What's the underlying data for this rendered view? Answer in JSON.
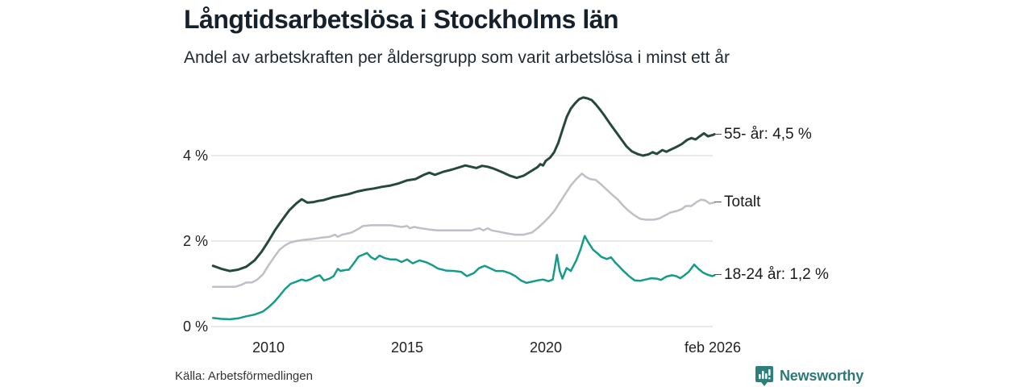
{
  "chart_data": {
    "type": "line",
    "title": "Långtidsarbetslösa i Stockholms län",
    "subtitle": "Andel av arbetskraften per åldersgrupp som varit arbetslösa i minst ett år",
    "xlabel": "",
    "ylabel": "",
    "xlim": [
      2008.0,
      2026.08
    ],
    "ylim": [
      0,
      5.6
    ],
    "grid": "horizontal",
    "legend_position": "right-end-labels",
    "y_ticks": [
      {
        "label": "0 %",
        "value": 0
      },
      {
        "label": "2 %",
        "value": 2
      },
      {
        "label": "4 %",
        "value": 4
      }
    ],
    "x_ticks": [
      {
        "label": "2010",
        "year": 2010
      },
      {
        "label": "2015",
        "year": 2015
      },
      {
        "label": "2020",
        "year": 2020
      },
      {
        "label": "feb 2026",
        "year": 2026.08
      }
    ],
    "series": [
      {
        "name": "55- år",
        "end_label": "55- år: 4,5 %",
        "end_value_text": "4,5 %",
        "color": "#26493f",
        "stroke_width": 3,
        "points": [
          [
            2008.0,
            1.42
          ],
          [
            2008.3,
            1.35
          ],
          [
            2008.6,
            1.3
          ],
          [
            2008.9,
            1.33
          ],
          [
            2009.2,
            1.4
          ],
          [
            2009.5,
            1.55
          ],
          [
            2009.75,
            1.75
          ],
          [
            2010.0,
            2.0
          ],
          [
            2010.25,
            2.27
          ],
          [
            2010.5,
            2.5
          ],
          [
            2010.75,
            2.72
          ],
          [
            2011.0,
            2.88
          ],
          [
            2011.2,
            2.98
          ],
          [
            2011.4,
            2.9
          ],
          [
            2011.6,
            2.91
          ],
          [
            2011.8,
            2.94
          ],
          [
            2012.0,
            2.96
          ],
          [
            2012.3,
            3.02
          ],
          [
            2012.6,
            3.06
          ],
          [
            2012.9,
            3.1
          ],
          [
            2013.2,
            3.16
          ],
          [
            2013.5,
            3.2
          ],
          [
            2013.8,
            3.23
          ],
          [
            2014.1,
            3.27
          ],
          [
            2014.4,
            3.3
          ],
          [
            2014.7,
            3.35
          ],
          [
            2015.0,
            3.42
          ],
          [
            2015.3,
            3.45
          ],
          [
            2015.6,
            3.55
          ],
          [
            2015.8,
            3.6
          ],
          [
            2016.0,
            3.55
          ],
          [
            2016.3,
            3.62
          ],
          [
            2016.6,
            3.67
          ],
          [
            2016.9,
            3.73
          ],
          [
            2017.1,
            3.77
          ],
          [
            2017.3,
            3.74
          ],
          [
            2017.5,
            3.71
          ],
          [
            2017.7,
            3.76
          ],
          [
            2017.9,
            3.74
          ],
          [
            2018.1,
            3.7
          ],
          [
            2018.4,
            3.62
          ],
          [
            2018.7,
            3.53
          ],
          [
            2018.95,
            3.48
          ],
          [
            2019.2,
            3.53
          ],
          [
            2019.45,
            3.63
          ],
          [
            2019.7,
            3.73
          ],
          [
            2019.8,
            3.8
          ],
          [
            2019.9,
            3.77
          ],
          [
            2020.0,
            3.88
          ],
          [
            2020.15,
            3.95
          ],
          [
            2020.3,
            4.08
          ],
          [
            2020.45,
            4.3
          ],
          [
            2020.6,
            4.6
          ],
          [
            2020.75,
            4.9
          ],
          [
            2020.9,
            5.1
          ],
          [
            2021.05,
            5.22
          ],
          [
            2021.2,
            5.32
          ],
          [
            2021.35,
            5.36
          ],
          [
            2021.5,
            5.34
          ],
          [
            2021.65,
            5.3
          ],
          [
            2021.8,
            5.2
          ],
          [
            2021.95,
            5.08
          ],
          [
            2022.1,
            4.95
          ],
          [
            2022.3,
            4.76
          ],
          [
            2022.5,
            4.58
          ],
          [
            2022.7,
            4.4
          ],
          [
            2022.9,
            4.22
          ],
          [
            2023.1,
            4.1
          ],
          [
            2023.3,
            4.04
          ],
          [
            2023.5,
            4.0
          ],
          [
            2023.7,
            4.03
          ],
          [
            2023.85,
            4.08
          ],
          [
            2024.0,
            4.04
          ],
          [
            2024.2,
            4.13
          ],
          [
            2024.35,
            4.09
          ],
          [
            2024.5,
            4.14
          ],
          [
            2024.7,
            4.2
          ],
          [
            2024.9,
            4.27
          ],
          [
            2025.1,
            4.37
          ],
          [
            2025.25,
            4.41
          ],
          [
            2025.4,
            4.38
          ],
          [
            2025.55,
            4.45
          ],
          [
            2025.7,
            4.52
          ],
          [
            2025.85,
            4.45
          ],
          [
            2026.0,
            4.48
          ],
          [
            2026.08,
            4.5
          ]
        ]
      },
      {
        "name": "Totalt",
        "end_label": "Totalt",
        "end_value_text": "",
        "color": "#bfbfc7",
        "stroke_width": 2.5,
        "points": [
          [
            2008.0,
            0.93
          ],
          [
            2008.4,
            0.93
          ],
          [
            2008.8,
            0.93
          ],
          [
            2009.0,
            0.97
          ],
          [
            2009.2,
            1.03
          ],
          [
            2009.4,
            1.03
          ],
          [
            2009.6,
            1.1
          ],
          [
            2009.8,
            1.22
          ],
          [
            2010.0,
            1.43
          ],
          [
            2010.2,
            1.62
          ],
          [
            2010.4,
            1.8
          ],
          [
            2010.6,
            1.9
          ],
          [
            2010.8,
            1.97
          ],
          [
            2011.0,
            2.0
          ],
          [
            2011.3,
            2.03
          ],
          [
            2011.6,
            2.05
          ],
          [
            2011.9,
            2.08
          ],
          [
            2012.2,
            2.1
          ],
          [
            2012.4,
            2.15
          ],
          [
            2012.5,
            2.1
          ],
          [
            2012.65,
            2.15
          ],
          [
            2012.8,
            2.17
          ],
          [
            2013.0,
            2.2
          ],
          [
            2013.2,
            2.27
          ],
          [
            2013.4,
            2.35
          ],
          [
            2013.7,
            2.37
          ],
          [
            2014.0,
            2.37
          ],
          [
            2014.4,
            2.37
          ],
          [
            2014.8,
            2.33
          ],
          [
            2015.0,
            2.35
          ],
          [
            2015.1,
            2.3
          ],
          [
            2015.25,
            2.33
          ],
          [
            2015.5,
            2.3
          ],
          [
            2015.8,
            2.27
          ],
          [
            2016.1,
            2.25
          ],
          [
            2016.5,
            2.25
          ],
          [
            2016.9,
            2.25
          ],
          [
            2017.3,
            2.25
          ],
          [
            2017.6,
            2.3
          ],
          [
            2017.75,
            2.25
          ],
          [
            2017.9,
            2.3
          ],
          [
            2018.05,
            2.25
          ],
          [
            2018.3,
            2.22
          ],
          [
            2018.6,
            2.18
          ],
          [
            2018.9,
            2.15
          ],
          [
            2019.2,
            2.15
          ],
          [
            2019.5,
            2.2
          ],
          [
            2019.7,
            2.3
          ],
          [
            2019.9,
            2.42
          ],
          [
            2020.1,
            2.55
          ],
          [
            2020.3,
            2.7
          ],
          [
            2020.5,
            2.9
          ],
          [
            2020.7,
            3.1
          ],
          [
            2020.9,
            3.3
          ],
          [
            2021.1,
            3.45
          ],
          [
            2021.3,
            3.58
          ],
          [
            2021.45,
            3.5
          ],
          [
            2021.6,
            3.45
          ],
          [
            2021.8,
            3.43
          ],
          [
            2022.0,
            3.32
          ],
          [
            2022.2,
            3.2
          ],
          [
            2022.4,
            3.08
          ],
          [
            2022.6,
            2.97
          ],
          [
            2022.8,
            2.82
          ],
          [
            2023.0,
            2.7
          ],
          [
            2023.2,
            2.6
          ],
          [
            2023.4,
            2.52
          ],
          [
            2023.6,
            2.5
          ],
          [
            2023.9,
            2.5
          ],
          [
            2024.1,
            2.53
          ],
          [
            2024.3,
            2.6
          ],
          [
            2024.5,
            2.67
          ],
          [
            2024.7,
            2.7
          ],
          [
            2024.9,
            2.75
          ],
          [
            2025.05,
            2.82
          ],
          [
            2025.25,
            2.82
          ],
          [
            2025.45,
            2.92
          ],
          [
            2025.6,
            2.97
          ],
          [
            2025.75,
            2.95
          ],
          [
            2025.9,
            2.88
          ],
          [
            2026.08,
            2.9
          ]
        ]
      },
      {
        "name": "18-24 år",
        "end_label": "18-24 år: 1,2 %",
        "end_value_text": "1,2 %",
        "color": "#169b8a",
        "stroke_width": 2.5,
        "points": [
          [
            2008.0,
            0.2
          ],
          [
            2008.3,
            0.18
          ],
          [
            2008.6,
            0.17
          ],
          [
            2008.9,
            0.19
          ],
          [
            2009.2,
            0.24
          ],
          [
            2009.5,
            0.28
          ],
          [
            2009.8,
            0.35
          ],
          [
            2010.0,
            0.45
          ],
          [
            2010.2,
            0.57
          ],
          [
            2010.4,
            0.72
          ],
          [
            2010.6,
            0.88
          ],
          [
            2010.8,
            1.0
          ],
          [
            2011.0,
            1.05
          ],
          [
            2011.2,
            1.1
          ],
          [
            2011.35,
            1.07
          ],
          [
            2011.5,
            1.1
          ],
          [
            2011.7,
            1.17
          ],
          [
            2011.85,
            1.2
          ],
          [
            2012.0,
            1.08
          ],
          [
            2012.2,
            1.12
          ],
          [
            2012.35,
            1.18
          ],
          [
            2012.5,
            1.35
          ],
          [
            2012.6,
            1.3
          ],
          [
            2012.75,
            1.32
          ],
          [
            2012.9,
            1.33
          ],
          [
            2013.1,
            1.5
          ],
          [
            2013.25,
            1.64
          ],
          [
            2013.4,
            1.68
          ],
          [
            2013.55,
            1.72
          ],
          [
            2013.7,
            1.62
          ],
          [
            2013.85,
            1.57
          ],
          [
            2014.0,
            1.66
          ],
          [
            2014.2,
            1.6
          ],
          [
            2014.4,
            1.57
          ],
          [
            2014.6,
            1.57
          ],
          [
            2014.8,
            1.51
          ],
          [
            2015.0,
            1.57
          ],
          [
            2015.2,
            1.48
          ],
          [
            2015.45,
            1.55
          ],
          [
            2015.7,
            1.5
          ],
          [
            2015.9,
            1.44
          ],
          [
            2016.1,
            1.36
          ],
          [
            2016.4,
            1.31
          ],
          [
            2016.7,
            1.3
          ],
          [
            2016.95,
            1.28
          ],
          [
            2017.15,
            1.18
          ],
          [
            2017.4,
            1.25
          ],
          [
            2017.6,
            1.37
          ],
          [
            2017.8,
            1.42
          ],
          [
            2018.0,
            1.36
          ],
          [
            2018.2,
            1.3
          ],
          [
            2018.45,
            1.3
          ],
          [
            2018.7,
            1.25
          ],
          [
            2018.9,
            1.18
          ],
          [
            2019.1,
            1.08
          ],
          [
            2019.3,
            1.02
          ],
          [
            2019.5,
            1.05
          ],
          [
            2019.7,
            1.08
          ],
          [
            2019.9,
            1.1
          ],
          [
            2020.1,
            1.06
          ],
          [
            2020.25,
            1.1
          ],
          [
            2020.4,
            1.68
          ],
          [
            2020.5,
            1.3
          ],
          [
            2020.6,
            1.12
          ],
          [
            2020.75,
            1.37
          ],
          [
            2020.9,
            1.3
          ],
          [
            2021.1,
            1.55
          ],
          [
            2021.25,
            1.8
          ],
          [
            2021.4,
            2.12
          ],
          [
            2021.55,
            1.95
          ],
          [
            2021.7,
            1.8
          ],
          [
            2021.85,
            1.72
          ],
          [
            2022.0,
            1.63
          ],
          [
            2022.2,
            1.58
          ],
          [
            2022.35,
            1.62
          ],
          [
            2022.5,
            1.5
          ],
          [
            2022.65,
            1.4
          ],
          [
            2022.8,
            1.3
          ],
          [
            2023.0,
            1.18
          ],
          [
            2023.2,
            1.08
          ],
          [
            2023.4,
            1.07
          ],
          [
            2023.6,
            1.1
          ],
          [
            2023.8,
            1.13
          ],
          [
            2024.0,
            1.12
          ],
          [
            2024.15,
            1.09
          ],
          [
            2024.35,
            1.17
          ],
          [
            2024.55,
            1.2
          ],
          [
            2024.7,
            1.18
          ],
          [
            2024.85,
            1.13
          ],
          [
            2025.0,
            1.2
          ],
          [
            2025.15,
            1.28
          ],
          [
            2025.35,
            1.45
          ],
          [
            2025.5,
            1.35
          ],
          [
            2025.65,
            1.27
          ],
          [
            2025.8,
            1.22
          ],
          [
            2026.0,
            1.18
          ],
          [
            2026.08,
            1.2
          ]
        ]
      }
    ]
  },
  "colors": {
    "grid": "#dcdcdc",
    "label_connector": "#555555",
    "logo_teal": "#2e7f7c",
    "logo_text_teal": "#2e7878"
  },
  "footer": {
    "source": "Källa: Arbetsförmedlingen",
    "logo_text": "Newsworthy",
    "logo_icon": "bar-chart-pin-icon"
  }
}
